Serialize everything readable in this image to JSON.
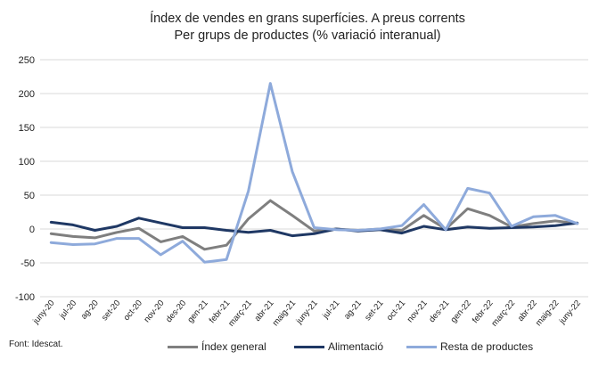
{
  "chart_data": {
    "type": "line",
    "title": "Índex de vendes  en grans superfícies. A preus corrents",
    "subtitle": "Per grups de productes (% variació  interanual)",
    "xlabel": "",
    "ylabel": "",
    "ylim": [
      -100,
      250
    ],
    "yticks": [
      -100,
      -50,
      0,
      50,
      100,
      150,
      200,
      250
    ],
    "grid": true,
    "legend_position": "bottom",
    "categories": [
      "juny-20",
      "jul-20",
      "ag-20",
      "set-20",
      "oct-20",
      "nov-20",
      "des-20",
      "gen-21",
      "febr-21",
      "març-21",
      "abr-21",
      "maig-21",
      "juny-21",
      "jul-21",
      "ag-21",
      "set-21",
      "oct-21",
      "nov-21",
      "des-21",
      "gen-22",
      "febr-22",
      "març-22",
      "abr-22",
      "maig-22",
      "juny-22"
    ],
    "series": [
      {
        "name": "Índex general",
        "color": "#7f7f7f",
        "values": [
          -7,
          -11,
          -13,
          -5,
          1,
          -19,
          -11,
          -30,
          -24,
          15,
          42,
          20,
          -3,
          0,
          -2,
          0,
          -2,
          20,
          0,
          30,
          20,
          3,
          8,
          12,
          8
        ]
      },
      {
        "name": "Alimentació",
        "color": "#1f3864",
        "values": [
          10,
          6,
          -2,
          4,
          16,
          9,
          2,
          2,
          -2,
          -5,
          -2,
          -10,
          -7,
          0,
          -3,
          -1,
          -6,
          4,
          -1,
          3,
          1,
          2,
          3,
          5,
          9
        ]
      },
      {
        "name": "Resta de productes",
        "color": "#8eaadb",
        "values": [
          -20,
          -23,
          -22,
          -14,
          -14,
          -38,
          -18,
          -49,
          -45,
          56,
          215,
          85,
          2,
          -1,
          -2,
          0,
          5,
          36,
          -1,
          60,
          53,
          4,
          18,
          20,
          8
        ]
      }
    ]
  },
  "source": "Font: Idescat."
}
